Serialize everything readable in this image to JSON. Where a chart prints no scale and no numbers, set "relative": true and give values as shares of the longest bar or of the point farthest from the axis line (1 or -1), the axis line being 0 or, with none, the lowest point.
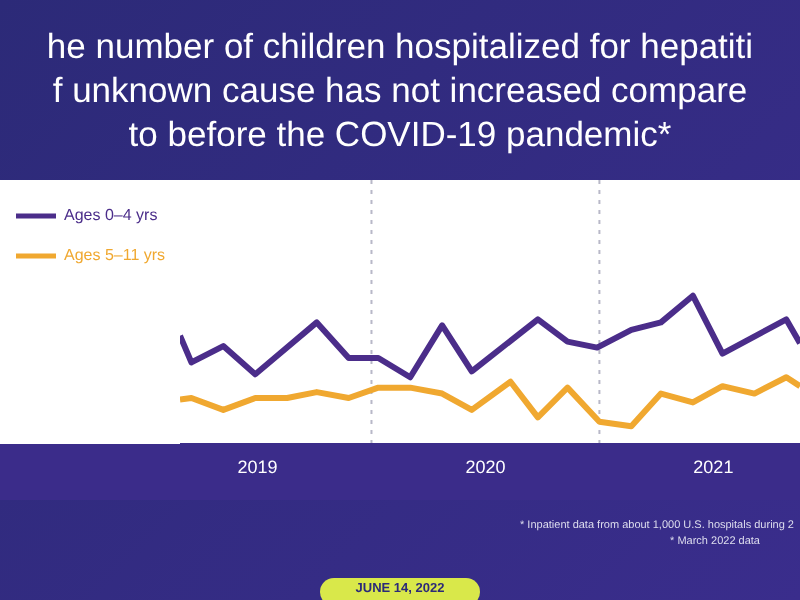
{
  "chart_data": {
    "type": "line",
    "title": "he number of children hospitalized for hepatiti\nf unknown cause has not increased compare\nto before the COVID-19 pandemic*",
    "relative": true,
    "legend": "top left",
    "xlim": [
      2019.16,
      2021.88
    ],
    "xticks": [
      {
        "value": 2019.5,
        "label": "2019"
      },
      {
        "value": 2020.5,
        "label": "2020"
      },
      {
        "value": 2021.5,
        "label": "2021"
      }
    ],
    "ref_lines": [
      {
        "axis": "x",
        "value": 2020,
        "label": null,
        "color": "#b8b8c8",
        "line_style": "dotted"
      },
      {
        "axis": "x",
        "value": 2021,
        "label": null,
        "color": "#b8b8c8",
        "line_style": "dotted"
      }
    ],
    "series": [
      {
        "name": "Ages 0–4 yrs",
        "color": "#4b2d8a",
        "x": [
          2019.16,
          2019.21,
          2019.35,
          2019.49,
          2019.76,
          2019.9,
          2020.03,
          2020.17,
          2020.31,
          2020.44,
          2020.73,
          2020.86,
          2020.99,
          2021.14,
          2021.27,
          2021.41,
          2021.54,
          2021.82,
          2021.88
        ],
        "values": [
          0.73,
          0.55,
          0.66,
          0.47,
          0.82,
          0.58,
          0.58,
          0.45,
          0.8,
          0.49,
          0.84,
          0.69,
          0.65,
          0.77,
          0.82,
          1,
          0.61,
          0.84,
          0.68
        ]
      },
      {
        "name": "Ages 5–11 yrs",
        "color": "#f0a830",
        "x": [
          2019.16,
          2019.21,
          2019.35,
          2019.49,
          2019.63,
          2019.76,
          2019.9,
          2020.03,
          2020.17,
          2020.31,
          2020.44,
          2020.61,
          2020.73,
          2020.86,
          2021.0,
          2021.14,
          2021.27,
          2021.41,
          2021.54,
          2021.68,
          2021.82,
          2021.88
        ],
        "values": [
          0.3,
          0.31,
          0.23,
          0.31,
          0.31,
          0.35,
          0.31,
          0.38,
          0.38,
          0.34,
          0.23,
          0.42,
          0.18,
          0.38,
          0.15,
          0.12,
          0.34,
          0.28,
          0.39,
          0.34,
          0.45,
          0.39
        ]
      }
    ],
    "annotations": [
      "* Inpatient data from about 1,000 U.S. hospitals during 2",
      "* March 2022 data",
      "JUNE 14, 2022"
    ]
  }
}
